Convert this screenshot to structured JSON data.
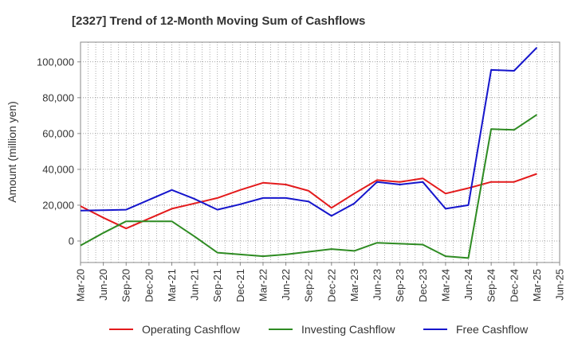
{
  "chart_data": {
    "type": "line",
    "title": "[2327]  Trend of 12-Month Moving Sum of Cashflows",
    "xlabel": "",
    "ylabel": "Amount (million yen)",
    "x": [
      "Mar-20",
      "Jun-20",
      "Sep-20",
      "Dec-20",
      "Mar-21",
      "Jun-21",
      "Sep-21",
      "Dec-21",
      "Mar-22",
      "Jun-22",
      "Sep-22",
      "Dec-22",
      "Mar-23",
      "Jun-23",
      "Sep-23",
      "Dec-23",
      "Mar-24",
      "Jun-24",
      "Sep-24",
      "Dec-24",
      "Mar-25"
    ],
    "x_ticks": [
      "Mar-20",
      "Jun-20",
      "Sep-20",
      "Dec-20",
      "Mar-21",
      "Jun-21",
      "Sep-21",
      "Dec-21",
      "Mar-22",
      "Jun-22",
      "Sep-22",
      "Dec-22",
      "Mar-23",
      "Jun-23",
      "Sep-23",
      "Dec-23",
      "Mar-24",
      "Jun-24",
      "Sep-24",
      "Dec-24",
      "Mar-25",
      "Jun-25"
    ],
    "y_ticks": [
      0,
      20000,
      40000,
      60000,
      80000,
      100000
    ],
    "y_tick_labels": [
      "0",
      "20,000",
      "40,000",
      "60,000",
      "80,000",
      "100,000"
    ],
    "ylim": [
      -12000,
      111000
    ],
    "grid": true,
    "legend_position": "bottom",
    "series": [
      {
        "name": "Operating Cashflow",
        "color": "#e31a1c",
        "values": [
          19500,
          13000,
          7000,
          12500,
          18000,
          21000,
          24000,
          28500,
          32500,
          31500,
          28000,
          18500,
          26500,
          34000,
          33000,
          35000,
          26500,
          29500,
          33000,
          33000,
          37500
        ]
      },
      {
        "name": "Investing Cashflow",
        "color": "#2e8b22",
        "values": [
          -2500,
          4500,
          11000,
          11000,
          11000,
          2500,
          -6500,
          -7500,
          -8500,
          -7500,
          -6000,
          -4500,
          -5500,
          -1000,
          -1500,
          -2000,
          -8500,
          -9500,
          62500,
          62000,
          70500
        ]
      },
      {
        "name": "Free Cashflow",
        "color": "#1515cc",
        "values": [
          17000,
          17200,
          17500,
          23000,
          28500,
          23500,
          17500,
          20500,
          24000,
          24000,
          22000,
          14000,
          21000,
          33000,
          31500,
          33000,
          18000,
          20000,
          95500,
          95000,
          108000
        ]
      }
    ]
  }
}
